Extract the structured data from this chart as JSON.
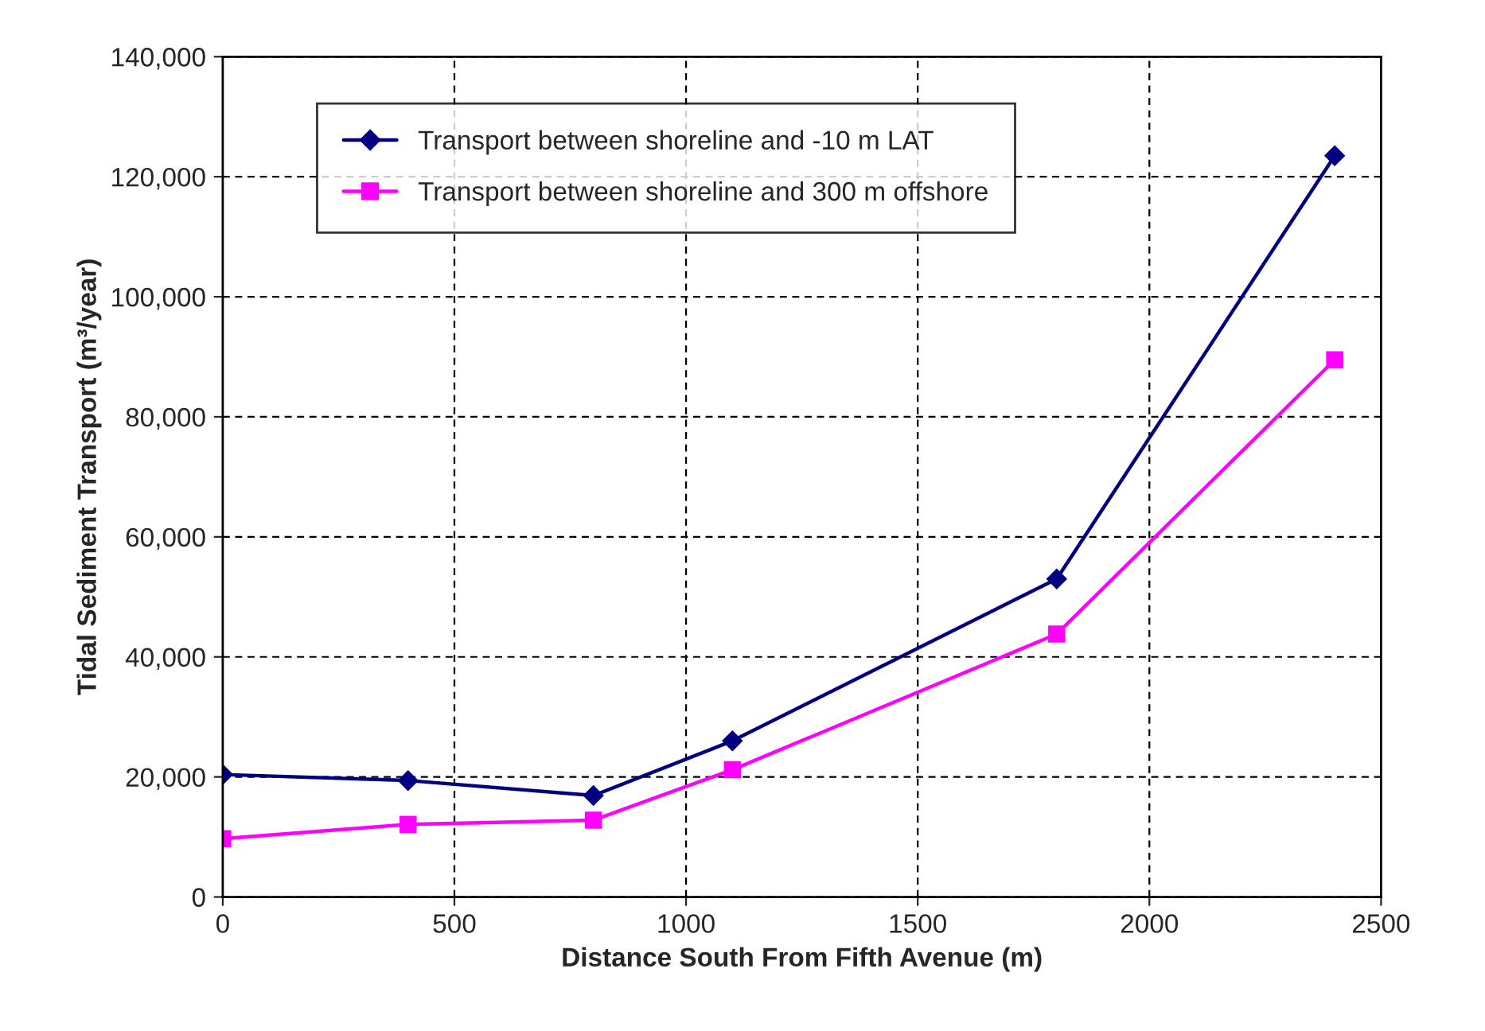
{
  "chart_data": {
    "type": "line",
    "xlabel": "Distance South From Fifth Avenue (m)",
    "ylabel": "Tidal Sediment Transport (m³/year)",
    "x": [
      0,
      400,
      800,
      1100,
      1800,
      2400
    ],
    "series": [
      {
        "name": "Transport between shoreline and -10 m LAT",
        "color": "#000080",
        "marker": "diamond",
        "values": [
          20400,
          19400,
          16900,
          26000,
          53000,
          123500
        ]
      },
      {
        "name": "Transport between shoreline and 300 m offshore",
        "color": "#ff00ff",
        "marker": "square",
        "values": [
          9700,
          12100,
          12800,
          21200,
          43800,
          89500
        ]
      }
    ],
    "xlim": [
      0,
      2500
    ],
    "xticks": [
      0,
      500,
      1000,
      1500,
      2000,
      2500
    ],
    "ylim": [
      0,
      140000
    ],
    "yticks": [
      0,
      {
        "value": 20000,
        "label": "20,000"
      },
      {
        "value": 40000,
        "label": "40,000"
      },
      {
        "value": 60000,
        "label": "60,000"
      },
      {
        "value": 80000,
        "label": "80,000"
      },
      {
        "value": 100000,
        "label": "100,000"
      },
      {
        "value": 120000,
        "label": "120,000"
      },
      {
        "value": 140000,
        "label": "140,000"
      }
    ],
    "grid": true,
    "legend": "top left",
    "line_style": "solid"
  }
}
